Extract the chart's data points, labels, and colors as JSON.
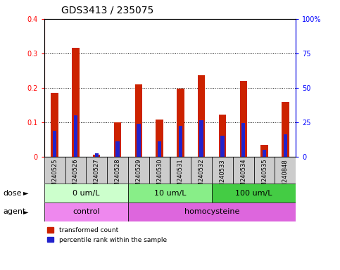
{
  "title": "GDS3413 / 235075",
  "samples": [
    "GSM240525",
    "GSM240526",
    "GSM240527",
    "GSM240528",
    "GSM240529",
    "GSM240530",
    "GSM240531",
    "GSM240532",
    "GSM240533",
    "GSM240534",
    "GSM240535",
    "GSM240848"
  ],
  "red_values": [
    0.185,
    0.315,
    0.005,
    0.1,
    0.21,
    0.107,
    0.197,
    0.237,
    0.122,
    0.22,
    0.035,
    0.158
  ],
  "blue_values": [
    0.075,
    0.12,
    0.01,
    0.045,
    0.095,
    0.045,
    0.09,
    0.105,
    0.06,
    0.097,
    0.02,
    0.065
  ],
  "red_color": "#cc2200",
  "blue_color": "#2222cc",
  "ylim_left": [
    0,
    0.4
  ],
  "ylim_right": [
    0,
    100
  ],
  "yticks_left": [
    0,
    0.1,
    0.2,
    0.3,
    0.4
  ],
  "yticks_right": [
    0,
    25,
    50,
    75,
    100
  ],
  "ytick_labels_left": [
    "0",
    "0.1",
    "0.2",
    "0.3",
    "0.4"
  ],
  "ytick_labels_right": [
    "0",
    "25",
    "50",
    "75",
    "100%"
  ],
  "dose_groups": [
    {
      "label": "0 um/L",
      "start": 0,
      "end": 4,
      "color": "#ccffcc"
    },
    {
      "label": "10 um/L",
      "start": 4,
      "end": 8,
      "color": "#88ee88"
    },
    {
      "label": "100 um/L",
      "start": 8,
      "end": 12,
      "color": "#44cc44"
    }
  ],
  "agent_groups": [
    {
      "label": "control",
      "start": 0,
      "end": 4,
      "color": "#ee88ee"
    },
    {
      "label": "homocysteine",
      "start": 4,
      "end": 12,
      "color": "#dd66dd"
    }
  ],
  "dose_label": "dose",
  "agent_label": "agent",
  "legend_red": "transformed count",
  "legend_blue": "percentile rank within the sample",
  "bar_width": 0.35,
  "blue_bar_width": 0.18,
  "tick_bg_color": "#cccccc",
  "grid_color": "#000000",
  "title_fontsize": 10,
  "tick_fontsize": 7,
  "label_fontsize": 8,
  "sample_fontsize": 6
}
